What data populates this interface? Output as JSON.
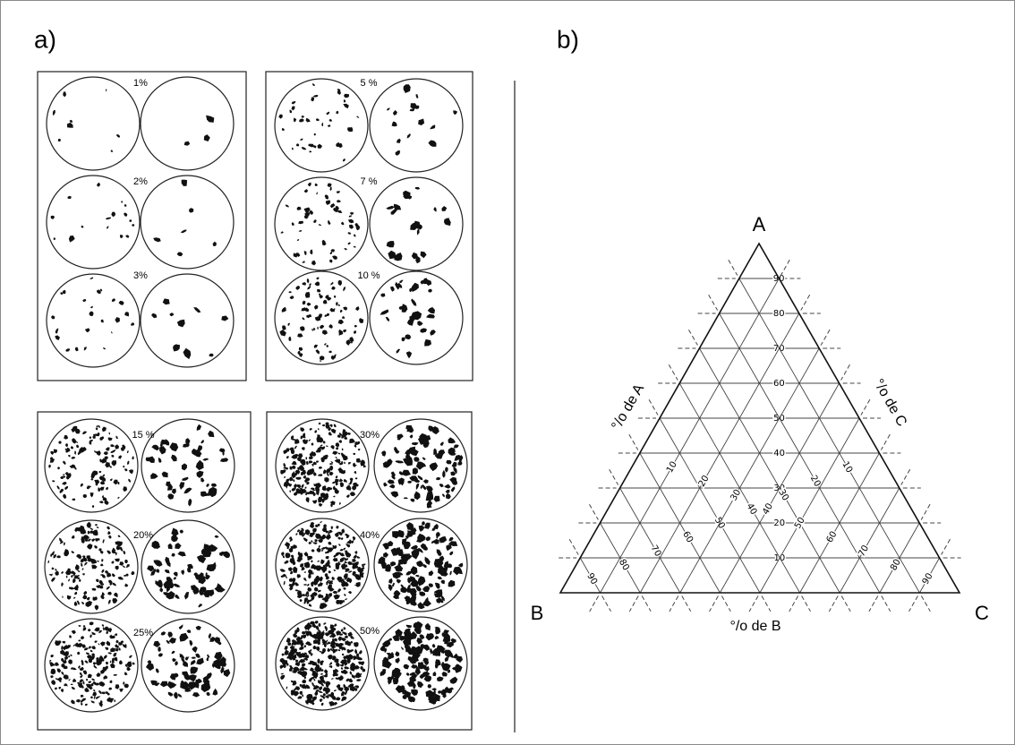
{
  "header": {
    "left": "a)",
    "right": "b)"
  },
  "panels": [
    {
      "items": [
        {
          "value": 1,
          "label": "1%"
        },
        {
          "value": 2,
          "label": "2%"
        },
        {
          "value": 3,
          "label": "3%"
        }
      ]
    },
    {
      "items": [
        {
          "value": 5,
          "label": "5 %"
        },
        {
          "value": 7,
          "label": "7 %"
        },
        {
          "value": 10,
          "label": "10 %"
        }
      ]
    },
    {
      "items": [
        {
          "value": 15,
          "label": "15 %"
        },
        {
          "value": 20,
          "label": "20%"
        },
        {
          "value": 25,
          "label": "25%"
        }
      ]
    },
    {
      "items": [
        {
          "value": 30,
          "label": "30%"
        },
        {
          "value": 40,
          "label": "40%"
        },
        {
          "value": 50,
          "label": "50%"
        }
      ]
    }
  ],
  "ternary": {
    "vertices": {
      "A": "A",
      "B": "B",
      "C": "C"
    },
    "axis_labels": {
      "A": "°/o  de  A",
      "B": "°/o  de  B",
      "C": "°/o  de  C"
    },
    "ticks": {
      "A": [
        10,
        20,
        30,
        40,
        50,
        60,
        70,
        80,
        90
      ],
      "B": [
        10,
        20,
        30,
        40,
        50,
        60,
        70,
        80,
        90
      ],
      "C": [
        10,
        20,
        30,
        40,
        50,
        60,
        70,
        80,
        90
      ]
    }
  }
}
